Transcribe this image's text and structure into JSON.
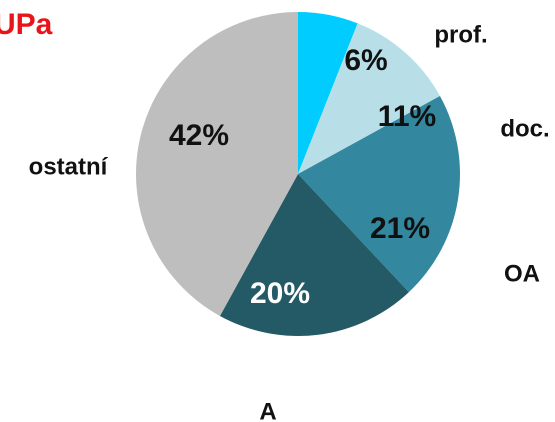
{
  "title": "UPa",
  "colors": {
    "title": "#e8141a",
    "background": "#ffffff"
  },
  "chart_data": {
    "type": "pie",
    "title": "UPa",
    "start": "top",
    "direction": "clockwise",
    "legend": "none",
    "categories": [
      "prof.",
      "doc.",
      "OA",
      "A",
      "ostatní"
    ],
    "values": [
      6,
      11,
      21,
      20,
      42
    ],
    "labels": [
      "6%",
      "11%",
      "21%",
      "20%",
      "42%"
    ],
    "colors": [
      "#00ccff",
      "#b8dfe8",
      "#33879e",
      "#235a66",
      "#bebebe"
    ],
    "label_colors": [
      "#111111",
      "#111111",
      "#111111",
      "#ffffff",
      "#111111"
    ]
  }
}
